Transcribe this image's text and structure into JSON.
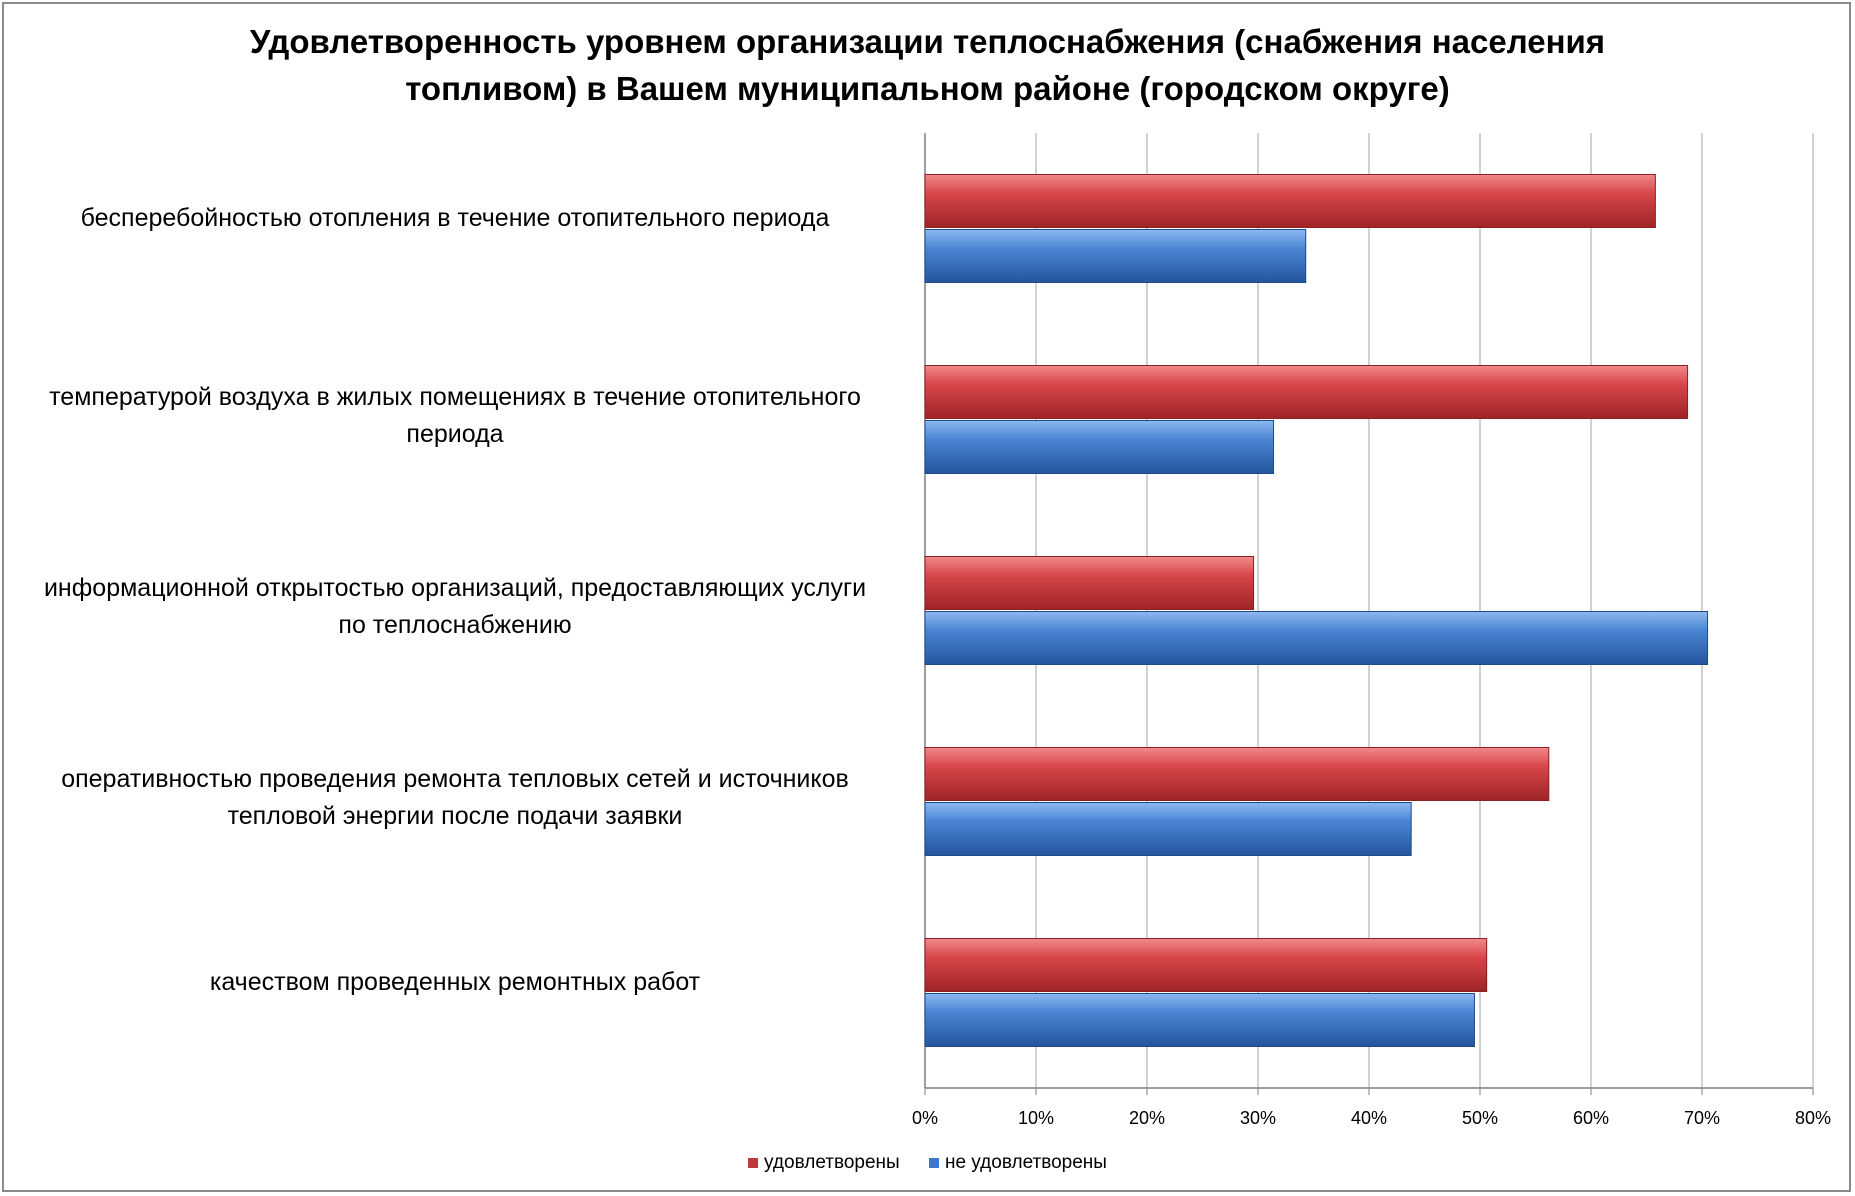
{
  "chart_data": {
    "type": "bar",
    "orientation": "horizontal",
    "title": [
      "Удовлетворенность уровнем организации теплоснабжения (снабжения населения",
      "топливом) в Вашем муниципальном районе (городском округе)"
    ],
    "categories": [
      [
        "бесперебойностью  отопления в течение отопительного периода"
      ],
      [
        "температурой  воздуха в жилых помещениях в течение отопительного",
        "периода"
      ],
      [
        "информационной открытостью  организаций, предоставляющих услуги",
        "по теплоснабжению"
      ],
      [
        "оперативностью проведения ремонта тепловых сетей и источников",
        "тепловой энергии после подачи заявки"
      ],
      [
        "качеством проведенных ремонтных работ"
      ]
    ],
    "series": [
      {
        "name": "удовлетворены",
        "color": "#c0393b",
        "values": [
          65.8,
          68.7,
          29.6,
          56.2,
          50.6
        ]
      },
      {
        "name": "не удовлетворены",
        "color": "#3d79c8",
        "values": [
          34.3,
          31.4,
          70.5,
          43.8,
          49.5
        ]
      }
    ],
    "xlim": [
      0,
      80
    ],
    "xticks": [
      "0%",
      "10%",
      "20%",
      "30%",
      "40%",
      "50%",
      "60%",
      "70%",
      "80%"
    ],
    "grid": true,
    "legend": "bottom"
  }
}
